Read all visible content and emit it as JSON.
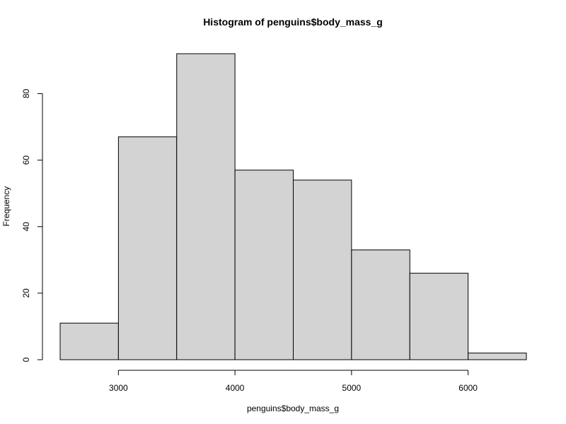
{
  "chart_data": {
    "type": "bar",
    "title": "Histogram of penguins$body_mass_g",
    "xlabel": "penguins$body_mass_g",
    "ylabel": "Frequency",
    "bins": [
      {
        "start": 2500,
        "end": 3000,
        "count": 11
      },
      {
        "start": 3000,
        "end": 3500,
        "count": 67
      },
      {
        "start": 3500,
        "end": 4000,
        "count": 92
      },
      {
        "start": 4000,
        "end": 4500,
        "count": 57
      },
      {
        "start": 4500,
        "end": 5000,
        "count": 54
      },
      {
        "start": 5000,
        "end": 5500,
        "count": 33
      },
      {
        "start": 5500,
        "end": 6000,
        "count": 26
      },
      {
        "start": 6000,
        "end": 6500,
        "count": 2
      }
    ],
    "x_ticks": [
      3000,
      4000,
      5000,
      6000
    ],
    "y_ticks": [
      0,
      20,
      40,
      60,
      80
    ],
    "xlim": [
      2500,
      6500
    ],
    "ylim": [
      0,
      92
    ],
    "grid": false,
    "legend": "none",
    "colors": {
      "bar_fill": "#d3d3d3",
      "bar_stroke": "#000000",
      "axis": "#000000",
      "text": "#000000"
    }
  }
}
